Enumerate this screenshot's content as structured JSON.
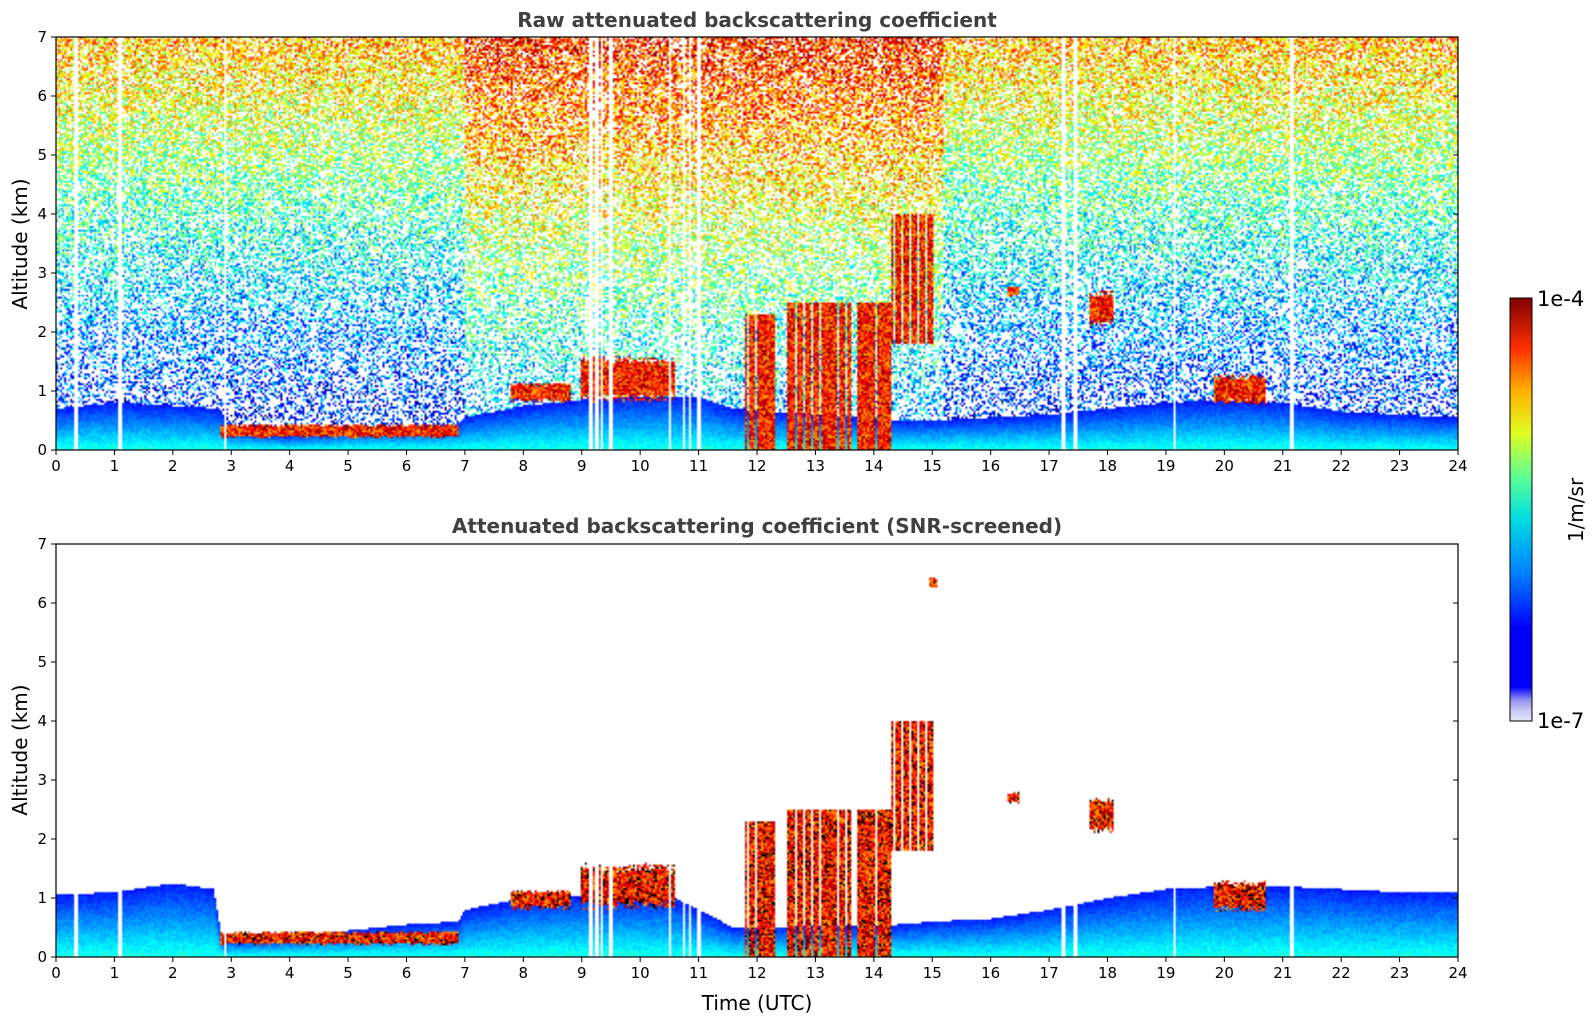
{
  "figure": {
    "colorbar": {
      "max_label": "1e-4",
      "min_label": "1e-7",
      "unit_label": "1/m/sr",
      "vmin": 1e-07,
      "vmax": 0.0001,
      "colormap": "jet (log scale)",
      "under_colors": [
        "#e6e6fa",
        "#c8c8f5",
        "#a0a0f0",
        "#7878ff"
      ]
    }
  },
  "chart_data": [
    {
      "type": "heatmap",
      "title": "Raw attenuated backscattering coefficient",
      "xlabel": "",
      "ylabel": "Altitude (km)",
      "xlim": [
        0,
        24
      ],
      "ylim": [
        0,
        7
      ],
      "x_ticks": [
        "0",
        "1",
        "2",
        "3",
        "4",
        "5",
        "6",
        "7",
        "8",
        "9",
        "10",
        "11",
        "12",
        "13",
        "14",
        "15",
        "16",
        "17",
        "18",
        "19",
        "20",
        "21",
        "22",
        "23",
        "24"
      ],
      "y_ticks": [
        "0",
        "1",
        "2",
        "3",
        "4",
        "5",
        "6",
        "7"
      ],
      "grid": false,
      "boundary_layer_top_km": [
        [
          0,
          0.7
        ],
        [
          1,
          0.8
        ],
        [
          2,
          0.75
        ],
        [
          2.8,
          0.7
        ],
        [
          3,
          0.35
        ],
        [
          4,
          0.25
        ],
        [
          5,
          0.35
        ],
        [
          6,
          0.4
        ],
        [
          6.9,
          0.45
        ],
        [
          7,
          0.55
        ],
        [
          8,
          0.75
        ],
        [
          9,
          0.85
        ],
        [
          10,
          0.9
        ],
        [
          11,
          0.9
        ],
        [
          11.6,
          0.7
        ],
        [
          14.4,
          0.5
        ],
        [
          15,
          0.5
        ],
        [
          16,
          0.55
        ],
        [
          17,
          0.6
        ],
        [
          18,
          0.7
        ],
        [
          19,
          0.8
        ],
        [
          20,
          0.85
        ],
        [
          21,
          0.8
        ],
        [
          22,
          0.65
        ],
        [
          23,
          0.6
        ],
        [
          24,
          0.55
        ]
      ],
      "cloud_features": [
        {
          "x_start": 2.8,
          "x_end": 6.9,
          "base_km": 0.2,
          "top_km": 0.45,
          "level": "high"
        },
        {
          "x_start": 7.8,
          "x_end": 8.8,
          "base_km": 0.8,
          "top_km": 1.15,
          "level": "high"
        },
        {
          "x_start": 9.0,
          "x_end": 10.6,
          "base_km": 0.8,
          "top_km": 1.6,
          "level": "high"
        },
        {
          "x_start": 11.8,
          "x_end": 12.3,
          "base_km": 0.0,
          "top_km": 2.3,
          "level": "high"
        },
        {
          "x_start": 12.5,
          "x_end": 13.6,
          "base_km": 0.0,
          "top_km": 2.5,
          "level": "high"
        },
        {
          "x_start": 13.7,
          "x_end": 14.3,
          "base_km": 0.0,
          "top_km": 2.5,
          "level": "high"
        },
        {
          "x_start": 14.3,
          "x_end": 15.0,
          "base_km": 1.8,
          "top_km": 4.0,
          "level": "high"
        },
        {
          "x_start": 14.95,
          "x_end": 15.1,
          "base_km": 6.25,
          "top_km": 6.45,
          "level": "high"
        },
        {
          "x_start": 16.3,
          "x_end": 16.5,
          "base_km": 2.6,
          "top_km": 2.8,
          "level": "high"
        },
        {
          "x_start": 17.7,
          "x_end": 18.1,
          "base_km": 2.1,
          "top_km": 2.7,
          "level": "high"
        },
        {
          "x_start": 19.8,
          "x_end": 20.7,
          "base_km": 0.75,
          "top_km": 1.3,
          "level": "high"
        }
      ],
      "missing_profiles_utc": [
        0.35,
        1.1,
        2.9,
        9.15,
        9.25,
        9.35,
        9.5,
        10.5,
        10.75,
        10.85,
        11.0,
        17.25,
        17.45,
        19.15,
        21.15
      ]
    },
    {
      "type": "heatmap",
      "title": "Attenuated backscattering coefficient (SNR-screened)",
      "xlabel": "Time (UTC)",
      "ylabel": "Altitude (km)",
      "xlim": [
        0,
        24
      ],
      "ylim": [
        0,
        7
      ],
      "x_ticks": [
        "0",
        "1",
        "2",
        "3",
        "4",
        "5",
        "6",
        "7",
        "8",
        "9",
        "10",
        "11",
        "12",
        "13",
        "14",
        "15",
        "16",
        "17",
        "18",
        "19",
        "20",
        "21",
        "22",
        "23",
        "24"
      ],
      "y_ticks": [
        "0",
        "1",
        "2",
        "3",
        "4",
        "5",
        "6",
        "7"
      ],
      "grid": false,
      "valid_signal_top_km": [
        [
          0,
          1.05
        ],
        [
          1,
          1.1
        ],
        [
          2,
          1.25
        ],
        [
          2.7,
          1.15
        ],
        [
          2.85,
          0.3
        ],
        [
          4,
          0.35
        ],
        [
          5,
          0.45
        ],
        [
          6,
          0.55
        ],
        [
          6.9,
          0.6
        ],
        [
          7,
          0.8
        ],
        [
          8,
          1.0
        ],
        [
          9,
          1.05
        ],
        [
          10,
          1.05
        ],
        [
          10.6,
          1.0
        ],
        [
          11.6,
          0.5
        ],
        [
          14.4,
          0.55
        ],
        [
          15,
          0.6
        ],
        [
          16,
          0.65
        ],
        [
          17,
          0.8
        ],
        [
          18,
          1.0
        ],
        [
          19,
          1.15
        ],
        [
          20,
          1.2
        ],
        [
          21,
          1.2
        ],
        [
          22,
          1.15
        ],
        [
          23,
          1.1
        ],
        [
          24,
          1.1
        ]
      ],
      "cloud_features": [
        {
          "x_start": 2.8,
          "x_end": 6.9,
          "base_km": 0.2,
          "top_km": 0.45,
          "level": "high"
        },
        {
          "x_start": 7.8,
          "x_end": 8.8,
          "base_km": 0.8,
          "top_km": 1.15,
          "level": "high"
        },
        {
          "x_start": 9.0,
          "x_end": 10.6,
          "base_km": 0.8,
          "top_km": 1.6,
          "level": "high"
        },
        {
          "x_start": 11.8,
          "x_end": 12.3,
          "base_km": 0.0,
          "top_km": 2.3,
          "level": "high"
        },
        {
          "x_start": 12.5,
          "x_end": 13.6,
          "base_km": 0.0,
          "top_km": 2.5,
          "level": "high"
        },
        {
          "x_start": 13.7,
          "x_end": 14.3,
          "base_km": 0.0,
          "top_km": 2.5,
          "level": "high"
        },
        {
          "x_start": 14.3,
          "x_end": 15.0,
          "base_km": 1.8,
          "top_km": 4.0,
          "level": "high"
        },
        {
          "x_start": 14.95,
          "x_end": 15.1,
          "base_km": 6.25,
          "top_km": 6.45,
          "level": "high"
        },
        {
          "x_start": 16.3,
          "x_end": 16.5,
          "base_km": 2.6,
          "top_km": 2.8,
          "level": "high"
        },
        {
          "x_start": 17.7,
          "x_end": 18.1,
          "base_km": 2.1,
          "top_km": 2.7,
          "level": "high"
        },
        {
          "x_start": 19.8,
          "x_end": 20.7,
          "base_km": 0.75,
          "top_km": 1.3,
          "level": "high"
        }
      ],
      "missing_profiles_utc": [
        0.35,
        1.1,
        2.9,
        9.15,
        9.25,
        9.35,
        9.5,
        10.5,
        10.75,
        10.85,
        11.0,
        17.25,
        17.45,
        19.15,
        21.15
      ]
    }
  ]
}
